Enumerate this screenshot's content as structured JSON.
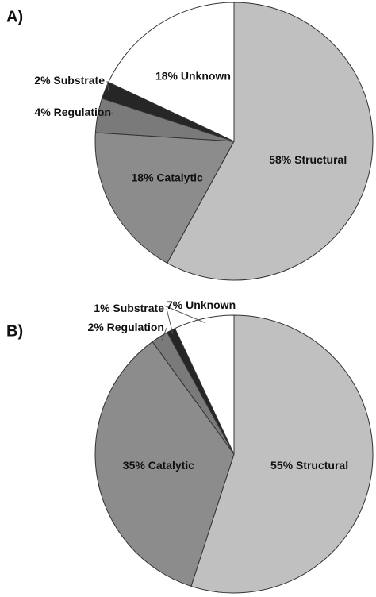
{
  "chart_data": [
    {
      "type": "pie",
      "title": "A)",
      "categories": [
        "Structural",
        "Catalytic",
        "Regulation",
        "Substrate",
        "Unknown"
      ],
      "values": [
        58,
        18,
        4,
        2,
        18
      ],
      "value_labels": [
        "58%",
        "18%",
        "4%",
        "2%",
        "18%"
      ],
      "colors": [
        "#c0c0c0",
        "#8c8c8c",
        "#7a7a7a",
        "#262626",
        "#ffffff"
      ]
    },
    {
      "type": "pie",
      "title": "B)",
      "categories": [
        "Structural",
        "Catalytic",
        "Regulation",
        "Substrate",
        "Unknown"
      ],
      "values": [
        55,
        35,
        2,
        1,
        7
      ],
      "value_labels": [
        "55%",
        "35%",
        "2%",
        "1%",
        "7%"
      ],
      "colors": [
        "#c0c0c0",
        "#8c8c8c",
        "#7a7a7a",
        "#262626",
        "#ffffff"
      ]
    }
  ]
}
